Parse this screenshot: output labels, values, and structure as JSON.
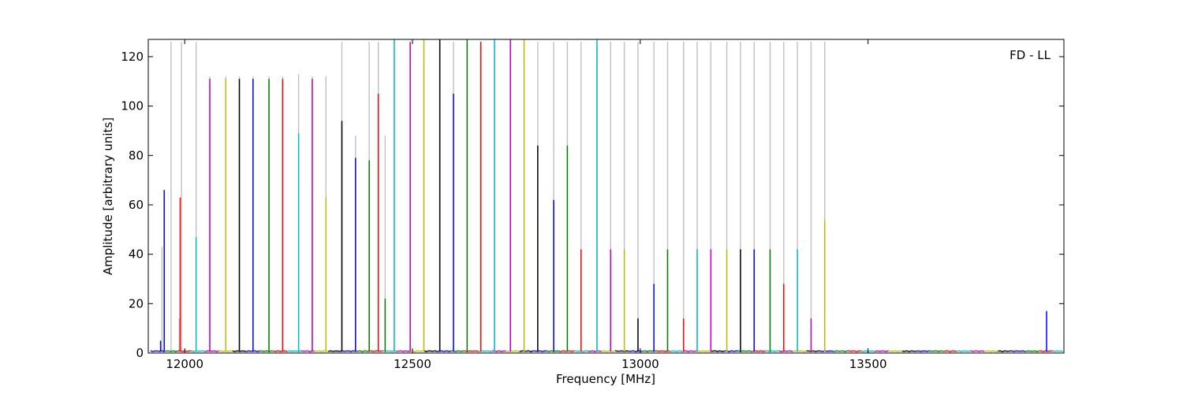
{
  "chart_data": {
    "type": "line",
    "title": "",
    "annotation": "FD - LL",
    "xlabel": "Frequency [MHz]",
    "ylabel": "Amplitude [arbitrary units]",
    "xlim": [
      11920,
      13930
    ],
    "ylim": [
      0,
      127
    ],
    "xticks": [
      12000,
      12500,
      13000,
      13500
    ],
    "yticks": [
      0,
      20,
      40,
      60,
      80,
      100,
      120
    ],
    "grid": false,
    "colors": [
      "#0000ff",
      "#008000",
      "#ff0000",
      "#00bfbf",
      "#bf00bf",
      "#bfbf00",
      "#000000"
    ],
    "background_color": "#c0c0c0",
    "background_peaks": {
      "x": [
        11950,
        11970,
        11988,
        11993,
        12025,
        12055,
        12090,
        12120,
        12150,
        12185,
        12215,
        12250,
        12280,
        12310,
        12345,
        12375,
        12405,
        12425,
        12440,
        12460,
        12495,
        12525,
        12560,
        12590,
        12620,
        12650,
        12680,
        12715,
        12745,
        12775,
        12810,
        12840,
        12870,
        12905,
        12935,
        12965,
        12995,
        13030,
        13060,
        13095,
        13125,
        13155,
        13190,
        13220,
        13250,
        13285,
        13315,
        13345,
        13375,
        13405
      ],
      "y": [
        43,
        126,
        14,
        126,
        126,
        112,
        112,
        112,
        112,
        112,
        112,
        113,
        112,
        112,
        126,
        88,
        126,
        126,
        88,
        126,
        126,
        126,
        126,
        126,
        126,
        126,
        126,
        126,
        126,
        126,
        126,
        126,
        126,
        126,
        126,
        126,
        126,
        126,
        126,
        126,
        126,
        126,
        126,
        126,
        126,
        126,
        126,
        126,
        126,
        126
      ]
    },
    "peaks": {
      "x": [
        11947,
        11955,
        11990,
        12025,
        12055,
        12090,
        12120,
        12150,
        12185,
        12215,
        12250,
        12280,
        12310,
        12345,
        12375,
        12405,
        12425,
        12440,
        12460,
        12495,
        12525,
        12560,
        12590,
        12620,
        12650,
        12680,
        12715,
        12745,
        12775,
        12810,
        12840,
        12870,
        12905,
        12935,
        12965,
        12995,
        13030,
        13060,
        13095,
        13125,
        13155,
        13190,
        13220,
        13250,
        13285,
        13315,
        13345,
        13375,
        13405,
        13892
      ],
      "y": [
        5,
        66,
        63,
        47,
        111,
        111,
        111,
        111,
        111,
        111,
        89,
        111,
        63,
        94,
        79,
        78,
        105,
        22,
        127,
        126,
        127,
        127,
        105,
        127,
        126,
        127,
        127,
        127,
        84,
        62,
        84,
        42,
        127,
        42,
        42,
        14,
        28,
        42,
        14,
        42,
        42,
        42,
        42,
        42,
        42,
        28,
        42,
        14,
        54,
        17
      ],
      "color_index": [
        0,
        0,
        2,
        3,
        4,
        5,
        6,
        0,
        1,
        2,
        3,
        4,
        5,
        6,
        0,
        1,
        2,
        1,
        3,
        4,
        5,
        6,
        0,
        1,
        2,
        3,
        4,
        5,
        6,
        0,
        1,
        2,
        3,
        4,
        5,
        6,
        0,
        1,
        2,
        3,
        4,
        5,
        6,
        0,
        1,
        2,
        3,
        4,
        5,
        0
      ]
    }
  }
}
